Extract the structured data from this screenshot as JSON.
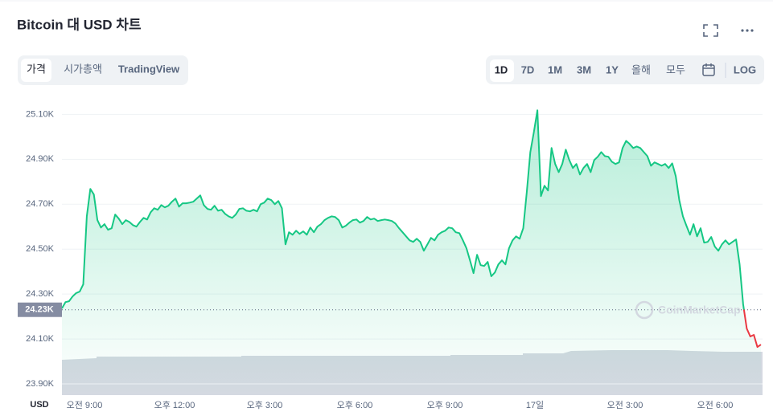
{
  "header": {
    "title": "Bitcoin 대 USD 차트",
    "tabs": [
      "가격",
      "시가총액",
      "TradingView"
    ],
    "ranges": [
      "1D",
      "7D",
      "1M",
      "3M",
      "1Y",
      "올해",
      "모두"
    ],
    "log": "LOG"
  },
  "chart_data": {
    "type": "area",
    "color": "#16c784",
    "down_color": "#ea3943",
    "grid": true,
    "currency": "USD",
    "watermark": "CoinMarketCap",
    "reference": {
      "value": 24230,
      "label": "24.23K"
    },
    "ylim": [
      23850,
      25180
    ],
    "yticks": [
      {
        "value": 23900,
        "label": "23.90K"
      },
      {
        "value": 24100,
        "label": "24.10K"
      },
      {
        "value": 24300,
        "label": "24.30K"
      },
      {
        "value": 24500,
        "label": "24.50K"
      },
      {
        "value": 24700,
        "label": "24.70K"
      },
      {
        "value": 24900,
        "label": "24.90K"
      },
      {
        "value": 25100,
        "label": "25.10K"
      }
    ],
    "xtick_labels": [
      "오전 9:00",
      "오후 12:00",
      "오후 3:00",
      "오후 6:00",
      "오후 9:00",
      "17일",
      "오전 3:00",
      "오전 6:00"
    ],
    "values": [
      24236,
      24264,
      24268,
      24289,
      24304,
      24311,
      24343,
      24646,
      24768,
      24743,
      24629,
      24596,
      24611,
      24586,
      24593,
      24654,
      24636,
      24611,
      24629,
      24621,
      24607,
      24600,
      24621,
      24639,
      24632,
      24664,
      24682,
      24675,
      24696,
      24686,
      24693,
      24711,
      24725,
      24689,
      24704,
      24704,
      24707,
      24711,
      24725,
      24739,
      24696,
      24679,
      24675,
      24693,
      24671,
      24675,
      24657,
      24646,
      24639,
      24654,
      24679,
      24682,
      24671,
      24668,
      24675,
      24668,
      24700,
      24707,
      24725,
      24718,
      24700,
      24714,
      24682,
      24521,
      24575,
      24564,
      24582,
      24568,
      24579,
      24564,
      24596,
      24575,
      24600,
      24611,
      24629,
      24639,
      24646,
      24643,
      24629,
      24596,
      24604,
      24618,
      24629,
      24632,
      24618,
      24625,
      24643,
      24632,
      24636,
      24625,
      24629,
      24632,
      24629,
      24625,
      24614,
      24593,
      24575,
      24557,
      24539,
      24532,
      24546,
      24532,
      24493,
      24521,
      24550,
      24539,
      24564,
      24575,
      24582,
      24596,
      24593,
      24575,
      24571,
      24539,
      24504,
      24450,
      24393,
      24475,
      24429,
      24425,
      24443,
      24379,
      24396,
      24432,
      24450,
      24432,
      24504,
      24539,
      24557,
      24546,
      24593,
      24754,
      24932,
      25021,
      25118,
      24736,
      24782,
      24761,
      24950,
      24879,
      24843,
      24879,
      24943,
      24896,
      24861,
      24879,
      24832,
      24861,
      24879,
      24843,
      24896,
      24911,
      24932,
      24914,
      24911,
      24889,
      24879,
      24886,
      24950,
      24982,
      24968,
      24950,
      24957,
      24950,
      24932,
      24914,
      24871,
      24886,
      24879,
      24871,
      24879,
      24861,
      24882,
      24825,
      24718,
      24646,
      24604,
      24564,
      24611,
      24557,
      24593,
      24529,
      24532,
      24554,
      24511,
      24493,
      24521,
      24539,
      24521,
      24532,
      24543,
      24432,
      24254,
      24146,
      24111,
      24118,
      24064,
      24075
    ]
  }
}
